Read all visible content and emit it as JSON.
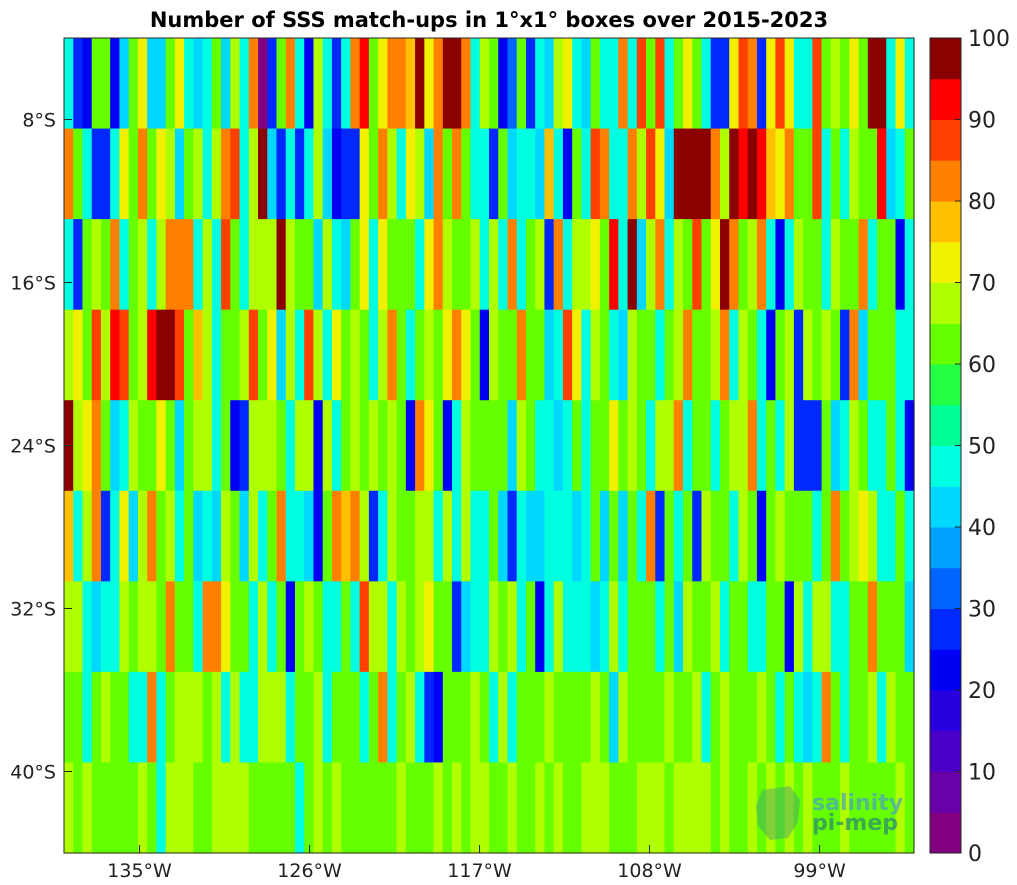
{
  "chart_data": {
    "type": "heatmap",
    "title": "Number of SSS match-ups in 1°x1° boxes over 2015-2023",
    "x_ticks": [
      {
        "value": -135,
        "label": "135°W"
      },
      {
        "value": -126,
        "label": "126°W"
      },
      {
        "value": -117,
        "label": "117°W"
      },
      {
        "value": -108,
        "label": "108°W"
      },
      {
        "value": -99,
        "label": "99°W"
      }
    ],
    "y_ticks": [
      {
        "value": -8,
        "label": "8°S"
      },
      {
        "value": -16,
        "label": "16°S"
      },
      {
        "value": -24,
        "label": "24°S"
      },
      {
        "value": -32,
        "label": "32°S"
      },
      {
        "value": -40,
        "label": "40°S"
      }
    ],
    "xlim": [
      -139,
      -94
    ],
    "ylim": [
      -44,
      -4
    ],
    "cell_size_deg": 1,
    "colorbar": {
      "ticks": [
        0,
        10,
        20,
        30,
        40,
        50,
        60,
        70,
        80,
        90,
        100
      ],
      "range": [
        0,
        100
      ],
      "levels": 20,
      "colormap": "jet",
      "colors": [
        "#800080",
        "#6a00a8",
        "#4b00c8",
        "#2800e0",
        "#0000f5",
        "#0028ff",
        "#0064ff",
        "#00a0ff",
        "#00d8ff",
        "#00ffe0",
        "#00ff96",
        "#22ff44",
        "#66ff00",
        "#b0ff00",
        "#f0f000",
        "#ffc000",
        "#ff8000",
        "#ff4000",
        "#ff0000",
        "#8b0000"
      ]
    },
    "no_data_color": "#ffffff",
    "watermark": {
      "line1": "salinity",
      "line2": "pi-mep"
    },
    "rows": [
      "9,5,4,12,12,4,8,12,14,8,8,12,14,9,8,9,12,8,13,9,16,0,5,12,16,9,4,13,9,5,9,16,18,12,14,16,16,15,19,14,16,19,19,16,9,13,12,4,6,12,5,9,8,13,14,9,8,12,9,9,16,9,17,12,17,9,12,14,12,9,5,5,14,17,16,5,14,17,14,9,9,17,12,13,12,14,12,19,20,9,14,9",
      "16,12,9,5,5,9,14,12,16,12,14,13,8,12,13,9,13,16,17,9,13,20,8,5,9,5,9,13,8,4,5,5,14,12,16,13,9,14,13,8,16,12,16,12,9,9,5,12,8,9,9,8,15,9,4,12,9,17,16,9,9,16,13,17,14,8,19,20,19,20,16,13,19,18,19,18,15,14,16,12,12,17,9,12,9,13,12,12,18,8,9,12",
      "9,5,12,13,12,16,9,12,13,9,13,16,16,16,9,13,9,17,12,9,13,13,13,19,13,12,12,8,13,9,8,12,14,9,14,12,12,12,9,14,16,13,12,12,13,9,13,9,16,9,12,13,5,16,9,13,13,14,12,18,9,19,8,13,16,9,13,12,17,12,14,19,16,12,13,16,9,4,9,13,12,12,9,13,12,12,16,9,12,12,4,9",
      "13,14,12,17,13,18,17,12,13,18,19,19,17,12,15,13,9,12,12,13,17,12,14,8,13,9,17,13,9,14,12,13,12,9,13,16,12,9,12,13,12,14,16,14,12,4,13,12,12,16,12,12,8,9,17,14,9,13,12,9,8,13,12,12,9,12,13,16,12,12,13,16,9,13,12,9,4,12,13,5,13,12,13,12,5,16,8,12,12,12,9,9",
      "20,13,14,16,12,8,9,13,12,12,14,12,8,12,13,13,9,12,4,5,13,13,13,12,9,13,13,4,13,9,12,13,12,13,12,13,12,4,16,14,12,4,9,13,12,12,12,12,8,13,12,9,9,8,9,12,9,12,12,14,12,13,12,9,13,13,16,9,12,12,9,12,13,13,16,9,12,9,13,5,5,5,12,8,9,13,12,9,9,12,9,4",
      "15,9,13,16,5,9,14,8,13,16,12,13,9,12,8,9,8,13,12,8,13,9,12,16,9,9,8,4,12,16,15,16,13,5,9,13,12,12,13,13,9,13,9,13,9,9,12,8,5,9,8,8,9,9,9,8,9,12,8,12,8,12,9,16,5,12,9,12,5,13,12,12,9,13,12,4,12,13,12,12,12,9,12,16,12,13,14,13,9,9,12,9",
      "13,13,9,8,9,9,13,12,13,13,12,16,12,12,9,16,16,14,12,12,9,13,9,12,4,12,13,12,9,9,12,9,17,13,13,9,13,12,13,14,12,12,5,8,9,9,13,12,13,9,12,4,9,13,9,9,9,8,9,13,9,12,12,12,9,12,8,13,12,12,13,9,12,12,9,9,12,12,4,13,9,13,13,9,9,12,12,16,12,12,12,8",
      "12,12,9,12,13,12,12,9,9,16,9,12,13,13,13,12,13,9,13,9,9,13,13,13,9,12,12,13,9,12,12,12,9,12,16,9,12,13,9,5,4,12,12,12,13,12,9,13,9,12,12,12,13,12,12,12,12,13,12,8,13,12,12,12,12,13,12,12,13,9,12,13,12,12,12,13,12,9,12,9,8,9,16,12,9,12,12,13,9,13,12,12",
      "13,12,13,12,12,12,12,12,13,12,9,13,13,13,12,12,13,13,13,13,12,12,12,12,12,9,12,13,12,13,12,12,12,12,12,12,13,12,12,12,13,12,13,12,13,13,12,12,13,12,12,13,12,13,12,12,13,13,13,12,12,12,13,13,13,12,13,13,13,13,12,13,12,12,13,12,13,12,13,12,13,12,12,12,13,12,12,12,12,12,13,12"
    ]
  }
}
